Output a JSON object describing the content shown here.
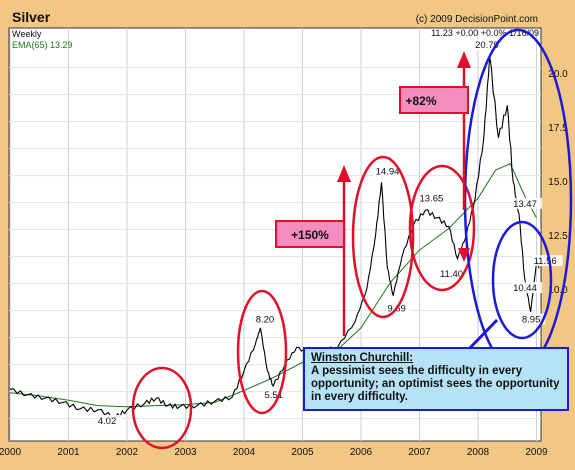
{
  "chart_data": {
    "type": "line",
    "title": "Silver",
    "subtitle": "Weekly",
    "copyright": "(c) 2009 DecisionPoint.com",
    "legend": {
      "ema": "EMA(65) 13.29"
    },
    "readout": "11.23 +0.00 +0.0% 1/16/09",
    "x_ticks": [
      "2000",
      "2001",
      "2002",
      "2003",
      "2004",
      "2005",
      "2006",
      "2007",
      "2008",
      "2009"
    ],
    "y_ticks": [
      "10.0",
      "12.5",
      "15.0",
      "17.5",
      "20.0"
    ],
    "ylim": [
      3.5,
      22
    ],
    "xlim": [
      2000.0,
      2009.1
    ],
    "series": [
      {
        "values": [
          [
            2000.0,
            5.35
          ],
          [
            2000.3,
            5.1
          ],
          [
            2000.6,
            4.95
          ],
          [
            2000.9,
            4.75
          ],
          [
            2001.2,
            4.45
          ],
          [
            2001.5,
            4.4
          ],
          [
            2001.8,
            4.05
          ],
          [
            2002.0,
            4.4
          ],
          [
            2002.3,
            4.7
          ],
          [
            2002.5,
            4.95
          ],
          [
            2002.7,
            4.6
          ],
          [
            2002.9,
            4.55
          ],
          [
            2003.2,
            4.6
          ],
          [
            2003.5,
            4.8
          ],
          [
            2003.8,
            5.0
          ],
          [
            2004.0,
            6.2
          ],
          [
            2004.2,
            7.5
          ],
          [
            2004.28,
            8.2
          ],
          [
            2004.4,
            6.2
          ],
          [
            2004.5,
            5.51
          ],
          [
            2004.7,
            6.5
          ],
          [
            2004.9,
            7.3
          ],
          [
            2005.1,
            7.0
          ],
          [
            2005.3,
            7.2
          ],
          [
            2005.6,
            7.3
          ],
          [
            2005.9,
            8.5
          ],
          [
            2006.1,
            10.0
          ],
          [
            2006.25,
            12.5
          ],
          [
            2006.35,
            14.94
          ],
          [
            2006.45,
            11.0
          ],
          [
            2006.55,
            9.69
          ],
          [
            2006.7,
            11.5
          ],
          [
            2006.9,
            13.0
          ],
          [
            2007.1,
            13.65
          ],
          [
            2007.3,
            13.3
          ],
          [
            2007.5,
            12.9
          ],
          [
            2007.65,
            11.4
          ],
          [
            2007.8,
            12.5
          ],
          [
            2007.95,
            14.2
          ],
          [
            2008.1,
            17.0
          ],
          [
            2008.2,
            20.79
          ],
          [
            2008.35,
            17.0
          ],
          [
            2008.5,
            18.5
          ],
          [
            2008.6,
            15.0
          ],
          [
            2008.7,
            13.47
          ],
          [
            2008.8,
            10.44
          ],
          [
            2008.9,
            8.95
          ],
          [
            2009.0,
            11.23
          ],
          [
            2009.05,
            11.0
          ]
        ]
      },
      {
        "values": [
          [
            2000.0,
            5.2
          ],
          [
            2000.5,
            5.05
          ],
          [
            2001.0,
            4.85
          ],
          [
            2001.5,
            4.6
          ],
          [
            2002.0,
            4.55
          ],
          [
            2002.5,
            4.6
          ],
          [
            2003.0,
            4.65
          ],
          [
            2003.5,
            4.75
          ],
          [
            2004.0,
            5.3
          ],
          [
            2004.5,
            5.9
          ],
          [
            2005.0,
            6.6
          ],
          [
            2005.5,
            6.95
          ],
          [
            2006.0,
            8.2
          ],
          [
            2006.5,
            10.3
          ],
          [
            2007.0,
            11.8
          ],
          [
            2007.5,
            12.8
          ],
          [
            2008.0,
            14.2
          ],
          [
            2008.3,
            15.5
          ],
          [
            2008.55,
            15.8
          ],
          [
            2008.8,
            14.3
          ],
          [
            2009.0,
            13.29
          ]
        ]
      }
    ],
    "labels": [
      {
        "text": "4.02",
        "x": 2001.5,
        "y": 3.8
      },
      {
        "text": "8.20",
        "x": 2004.2,
        "y": 8.5
      },
      {
        "text": "5.51",
        "x": 2004.35,
        "y": 5.0
      },
      {
        "text": "14.94",
        "x": 2006.25,
        "y": 15.35
      },
      {
        "text": "9.69",
        "x": 2006.45,
        "y": 9.0
      },
      {
        "text": "13.65",
        "x": 2007.0,
        "y": 14.1
      },
      {
        "text": "11.40",
        "x": 2007.35,
        "y": 10.6
      },
      {
        "text": "20.79",
        "x": 2007.95,
        "y": 21.2
      },
      {
        "text": "13.47",
        "x": 2008.6,
        "y": 13.85
      },
      {
        "text": "11.56",
        "x": 2008.95,
        "y": 11.2
      },
      {
        "text": "10.44",
        "x": 2008.6,
        "y": 9.95
      },
      {
        "text": "8.95",
        "x": 2008.75,
        "y": 8.5
      }
    ],
    "annotations": [
      {
        "text": "+150%"
      },
      {
        "text": "+82%"
      }
    ],
    "quote": {
      "author": "Winston Churchill:",
      "text": "A pessimist sees the difficulty in every opportunity; an optimist sees the opportunity in every difficulty."
    },
    "colors": {
      "price": "#000000",
      "ema": "#1a7a1a",
      "red_marks": "#e0102a",
      "blue_marks": "#1a1ad8",
      "background": "#f2c784",
      "plot": "#ffffff"
    }
  }
}
